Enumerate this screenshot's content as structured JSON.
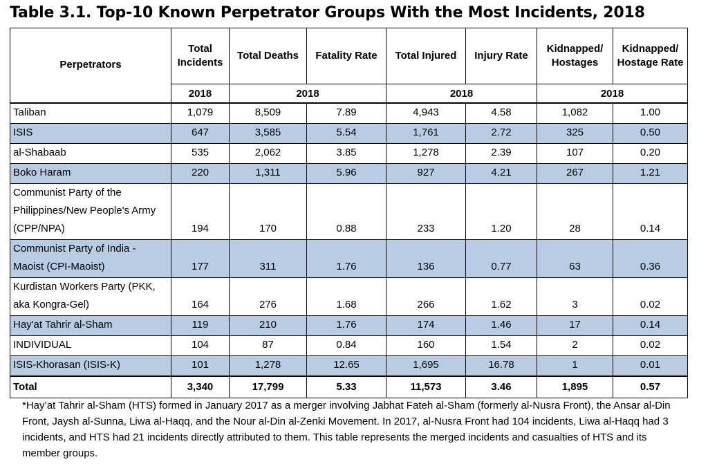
{
  "title": "Table 3.1.  Top-10 Known Perpetrator Groups With the Most Incidents, 2018",
  "headers": {
    "perpetrators": "Perpetrators",
    "total_incidents": "Total Incidents",
    "total_deaths": "Total Deaths",
    "fatality_rate": "Fatality Rate",
    "total_injured": "Total Injured",
    "injury_rate": "Injury Rate",
    "kidnapped": "Kidnapped/ Hostages",
    "kidnapped_rate": "Kidnapped/ Hostage Rate",
    "year1": "2018",
    "year2": "2018",
    "year3": "2018",
    "year4": "2018"
  },
  "rows": [
    {
      "name": "Taliban",
      "incidents": "1,079",
      "deaths": "8,509",
      "fatality": "7.89",
      "injured": "4,943",
      "injury": "4.58",
      "kidnapped": "1,082",
      "krate": "1.00"
    },
    {
      "name": "ISIS",
      "incidents": "647",
      "deaths": "3,585",
      "fatality": "5.54",
      "injured": "1,761",
      "injury": "2.72",
      "kidnapped": "325",
      "krate": "0.50"
    },
    {
      "name": "al-Shabaab",
      "incidents": "535",
      "deaths": "2,062",
      "fatality": "3.85",
      "injured": "1,278",
      "injury": "2.39",
      "kidnapped": "107",
      "krate": "0.20"
    },
    {
      "name": "Boko Haram",
      "incidents": "220",
      "deaths": "1,311",
      "fatality": "5.96",
      "injured": "927",
      "injury": "4.21",
      "kidnapped": "267",
      "krate": "1.21"
    },
    {
      "name": "Communist Party of the Philippines/New People's Army (CPP/NPA)",
      "incidents": "194",
      "deaths": "170",
      "fatality": "0.88",
      "injured": "233",
      "injury": "1.20",
      "kidnapped": "28",
      "krate": "0.14"
    },
    {
      "name": "Communist Party of India - Maoist (CPI-Maoist)",
      "incidents": "177",
      "deaths": "311",
      "fatality": "1.76",
      "injured": "136",
      "injury": "0.77",
      "kidnapped": "63",
      "krate": "0.36"
    },
    {
      "name": "Kurdistan Workers Party (PKK, aka Kongra-Gel)",
      "incidents": "164",
      "deaths": "276",
      "fatality": "1.68",
      "injured": "266",
      "injury": "1.62",
      "kidnapped": "3",
      "krate": "0.02"
    },
    {
      "name": "Hay'at Tahrir al-Sham",
      "incidents": "119",
      "deaths": "210",
      "fatality": "1.76",
      "injured": "174",
      "injury": "1.46",
      "kidnapped": "17",
      "krate": "0.14"
    },
    {
      "name": "INDIVIDUAL",
      "incidents": "104",
      "deaths": "87",
      "fatality": "0.84",
      "injured": "160",
      "injury": "1.54",
      "kidnapped": "2",
      "krate": "0.02"
    },
    {
      "name": "ISIS-Khorasan (ISIS-K)",
      "incidents": "101",
      "deaths": "1,278",
      "fatality": "12.65",
      "injured": "1,695",
      "injury": "16.78",
      "kidnapped": "1",
      "krate": "0.01"
    }
  ],
  "total": {
    "name": "Total",
    "incidents": "3,340",
    "deaths": "17,799",
    "fatality": "5.33",
    "injured": "11,573",
    "injury": "3.46",
    "kidnapped": "1,895",
    "krate": "0.57"
  },
  "footnote": "*Hay’at Tahrir al-Sham (HTS) formed in January 2017 as a merger involving Jabhat Fateh al-Sham (formerly al-Nusra Front), the Ansar al-Din Front, Jaysh al-Sunna, Liwa al-Haqq, and the Nour al-Din al-Zenki Movement.  In 2017, al-Nusra Front had 104 incidents, Liwa al-Haqq had 3 incidents, and HTS had 21 incidents directly attributed to them.  This table represents the merged incidents and casualties of HTS and its member groups."
}
